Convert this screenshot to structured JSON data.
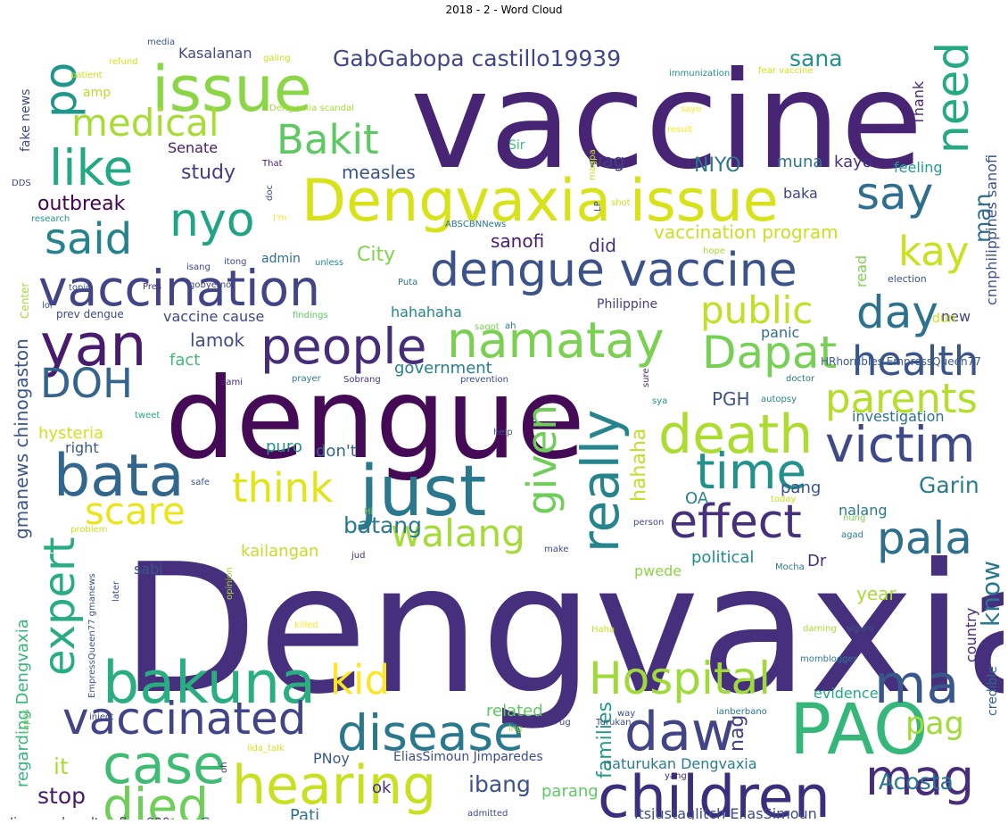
{
  "title": "2018 - 2 - Word Cloud",
  "words": [
    {
      "text": "Dengvaxia",
      "color": "#46307e"
    },
    {
      "text": "vaccine",
      "color": "#482475"
    },
    {
      "text": "dengue",
      "color": "#440a56"
    },
    {
      "text": "issue",
      "color": "#8bd646"
    },
    {
      "text": "Dengvaxia issue",
      "color": "#d8e219"
    },
    {
      "text": "dengue vaccine",
      "color": "#3b528b"
    },
    {
      "text": "just",
      "color": "#2a788e"
    },
    {
      "text": "PAO",
      "color": "#35b779"
    },
    {
      "text": "children",
      "color": "#3b2f7d"
    },
    {
      "text": "vaccination",
      "color": "#414487"
    },
    {
      "text": "bata",
      "color": "#31668e"
    },
    {
      "text": "yan",
      "color": "#481b6d"
    },
    {
      "text": "people",
      "color": "#472c7a"
    },
    {
      "text": "namatay",
      "color": "#7ad151"
    },
    {
      "text": "bakuna",
      "color": "#29af7f"
    },
    {
      "text": "vaccinated",
      "color": "#414487"
    },
    {
      "text": "disease",
      "color": "#2a788e"
    },
    {
      "text": "case",
      "color": "#3fbc73"
    },
    {
      "text": "hearing",
      "color": "#c8e020"
    },
    {
      "text": "died",
      "color": "#6ece58"
    },
    {
      "text": "daw",
      "color": "#414487"
    },
    {
      "text": "mag",
      "color": "#472d7b"
    },
    {
      "text": "ma",
      "color": "#38588c"
    },
    {
      "text": "death",
      "color": "#addc30"
    },
    {
      "text": "pala",
      "color": "#2d708e"
    },
    {
      "text": "victim",
      "color": "#3e4989"
    },
    {
      "text": "health",
      "color": "#3a548c"
    },
    {
      "text": "time",
      "color": "#21918c"
    },
    {
      "text": "effect",
      "color": "#46307e"
    },
    {
      "text": "walang",
      "color": "#a5db36"
    },
    {
      "text": "think",
      "color": "#e2e418"
    },
    {
      "text": "scare",
      "color": "#eae51a"
    },
    {
      "text": "expert",
      "color": "#27ad81"
    },
    {
      "text": "really",
      "color": "#25848e"
    },
    {
      "text": "given",
      "color": "#6ece58"
    },
    {
      "text": "Hospital",
      "color": "#a0da39"
    },
    {
      "text": "kid",
      "color": "#fde725"
    },
    {
      "text": "need",
      "color": "#23a983"
    },
    {
      "text": "say",
      "color": "#2e6e8e"
    },
    {
      "text": "day",
      "color": "#2c728e"
    },
    {
      "text": "kay",
      "color": "#cae11f"
    },
    {
      "text": "public",
      "color": "#c0df25"
    },
    {
      "text": "Dapat",
      "color": "#75d054"
    },
    {
      "text": "parents",
      "color": "#b5de2b"
    },
    {
      "text": "like",
      "color": "#22a884"
    },
    {
      "text": "medical",
      "color": "#a8db34"
    },
    {
      "text": "po",
      "color": "#1f978b"
    },
    {
      "text": "Bakit",
      "color": "#5ec962"
    },
    {
      "text": "said",
      "color": "#25838e"
    },
    {
      "text": "nyo",
      "color": "#20a486"
    },
    {
      "text": "DOH",
      "color": "#32648e"
    },
    {
      "text": "GabGabopa castillo19939",
      "color": "#3f4788"
    },
    {
      "text": "sana",
      "color": "#21918c"
    },
    {
      "text": "Acosta",
      "color": "#2a788e"
    },
    {
      "text": "pag",
      "color": "#a2da37"
    },
    {
      "text": "know",
      "color": "#2a788e"
    },
    {
      "text": "Garin",
      "color": "#287c8e"
    },
    {
      "text": "ibang",
      "color": "#3a538b"
    },
    {
      "text": "stop",
      "color": "#481a6c"
    },
    {
      "text": "it",
      "color": "#a8db34"
    },
    {
      "text": "regarding Dengvaxia",
      "color": "#35b779"
    },
    {
      "text": "gmanews chinogaston",
      "color": "#39558c"
    },
    {
      "text": "hysteria",
      "color": "#d2e21b"
    },
    {
      "text": "outbreak",
      "color": "#440154"
    },
    {
      "text": "study",
      "color": "#433d84"
    },
    {
      "text": "Senate",
      "color": "#481c6e"
    },
    {
      "text": "measles",
      "color": "#3a548c"
    },
    {
      "text": "wag",
      "color": "#433d84"
    },
    {
      "text": "NIYO",
      "color": "#2a768e"
    },
    {
      "text": "muna",
      "color": "#2c738e"
    },
    {
      "text": "kayo",
      "color": "#46307e"
    },
    {
      "text": "sanofi",
      "color": "#481b6d"
    },
    {
      "text": "did",
      "color": "#472f7d"
    },
    {
      "text": "vaccination program",
      "color": "#c8e020"
    },
    {
      "text": "City",
      "color": "#7fd34e"
    },
    {
      "text": "man",
      "color": "#2e6e8e"
    },
    {
      "text": "lamok",
      "color": "#3e4c8a"
    },
    {
      "text": "fact",
      "color": "#3bbb75"
    },
    {
      "text": "vaccine cause",
      "color": "#414487"
    },
    {
      "text": "hahahaha",
      "color": "#24868e"
    },
    {
      "text": "government",
      "color": "#287d8e"
    },
    {
      "text": "PGH",
      "color": "#3b528b"
    },
    {
      "text": "puro",
      "color": "#21918c"
    },
    {
      "text": "don't",
      "color": "#31668e"
    },
    {
      "text": "right",
      "color": "#38598c"
    },
    {
      "text": "batang",
      "color": "#2a788e"
    },
    {
      "text": "kailangan",
      "color": "#c2df23"
    },
    {
      "text": "sabi",
      "color": "#3a548c"
    },
    {
      "text": "hahaha",
      "color": "#c0df25"
    },
    {
      "text": "OA",
      "color": "#26828e"
    },
    {
      "text": "nag",
      "color": "#433e85"
    },
    {
      "text": "pang",
      "color": "#3b528b"
    },
    {
      "text": "nalang",
      "color": "#29798e"
    },
    {
      "text": "political",
      "color": "#228c8d"
    },
    {
      "text": "Dr",
      "color": "#46307e"
    },
    {
      "text": "pwede",
      "color": "#8bd646"
    },
    {
      "text": "year",
      "color": "#a8db34"
    },
    {
      "text": "evidence",
      "color": "#22a884"
    },
    {
      "text": "related",
      "color": "#5cc863"
    },
    {
      "text": "families",
      "color": "#1e9b8a"
    },
    {
      "text": "naturukan Dengvaxia",
      "color": "#287d8e"
    },
    {
      "text": "PNoy",
      "color": "#38588c"
    },
    {
      "text": "EliasSimoun Jimparedes",
      "color": "#3d4e8a"
    },
    {
      "text": "ok",
      "color": "#472f7d"
    },
    {
      "text": "Pati",
      "color": "#2c718e"
    },
    {
      "text": "parang",
      "color": "#5ec962"
    },
    {
      "text": "itsjustaglitch EliasSimoun",
      "color": "#3e4a89"
    },
    {
      "text": "Cause",
      "color": "#2e6e8e"
    },
    {
      "text": "Jimparedes altsurfboy000",
      "color": "#46337f"
    },
    {
      "text": "country",
      "color": "#482677"
    },
    {
      "text": "credible",
      "color": "#33638d"
    },
    {
      "text": "cnnphilippines sanofi",
      "color": "#3b528b"
    },
    {
      "text": "investigation",
      "color": "#2c728e"
    },
    {
      "text": "feeling",
      "color": "#1f9e89"
    },
    {
      "text": "baka",
      "color": "#404588"
    },
    {
      "text": "Thank",
      "color": "#482878"
    },
    {
      "text": "read",
      "color": "#7ad151"
    },
    {
      "text": "new",
      "color": "#3e4a89"
    },
    {
      "text": "dun",
      "color": "#d2e21b"
    },
    {
      "text": "panic",
      "color": "#2e6f8e"
    },
    {
      "text": "Philippine",
      "color": "#433e85"
    },
    {
      "text": "admin",
      "color": "#2e6e8e"
    },
    {
      "text": "Kasalanan",
      "color": "#3e4989"
    },
    {
      "text": "fake news",
      "color": "#3e4a89"
    },
    {
      "text": "amp",
      "color": "#b5de2b"
    },
    {
      "text": "Sir",
      "color": "#3dbc74"
    },
    {
      "text": "That",
      "color": "#482173"
    },
    {
      "text": "Center",
      "color": "#a8db34"
    },
    {
      "text": "prev dengue",
      "color": "#3e4989"
    },
    {
      "text": "HRhorribles EmpressQueen77",
      "color": "#39568c"
    },
    {
      "text": "election",
      "color": "#3b528b"
    },
    {
      "text": "EmpressQueen77 gmanews",
      "color": "#3b528b"
    },
    {
      "text": "Turukan",
      "color": "#3e4989"
    },
    {
      "text": "ianberbano",
      "color": "#2c738e"
    },
    {
      "text": "momblogger",
      "color": "#29798e"
    },
    {
      "text": "ilda_talk",
      "color": "#d8e219"
    },
    {
      "text": "autopsy",
      "color": "#26828e"
    },
    {
      "text": "investigating",
      "color": "#3b528b"
    },
    {
      "text": "admitted",
      "color": "#3e4989"
    },
    {
      "text": "media",
      "color": "#3a548c"
    },
    {
      "text": "refund",
      "color": "#d8e219"
    },
    {
      "text": "patient",
      "color": "#c8e020"
    },
    {
      "text": "galing",
      "color": "#c8e020"
    },
    {
      "text": "immunization",
      "color": "#21918c"
    },
    {
      "text": "fear vaccine",
      "color": "#d2e21b"
    },
    {
      "text": "Dengvaxia scandal",
      "color": "#a5db36"
    },
    {
      "text": "sayo",
      "color": "#fde725"
    },
    {
      "text": "result",
      "color": "#fde725"
    },
    {
      "text": "DDS",
      "color": "#3e4a89"
    },
    {
      "text": "research",
      "color": "#21918c"
    },
    {
      "text": "lol",
      "color": "#3b528b"
    },
    {
      "text": "topic",
      "color": "#39568c"
    },
    {
      "text": "Pres",
      "color": "#46337f"
    },
    {
      "text": "isang",
      "color": "#3e4989"
    },
    {
      "text": "gobyerno",
      "color": "#414487"
    },
    {
      "text": "itong",
      "color": "#3e4a89"
    },
    {
      "text": "unless",
      "color": "#228c8d"
    },
    {
      "text": "Puta",
      "color": "#2c718e"
    },
    {
      "text": "hope",
      "color": "#a8db34"
    },
    {
      "text": "ah",
      "color": "#2a788e"
    },
    {
      "text": "sagot",
      "color": "#7ad151"
    },
    {
      "text": "findings",
      "color": "#5ec962"
    },
    {
      "text": "dami",
      "color": "#482677"
    },
    {
      "text": "prayer",
      "color": "#2a788e"
    },
    {
      "text": "Sobrang",
      "color": "#46337f"
    },
    {
      "text": "prevention",
      "color": "#3e4989"
    },
    {
      "text": "doctor",
      "color": "#2a788e"
    },
    {
      "text": "sure",
      "color": "#482878"
    },
    {
      "text": "sya",
      "color": "#21918c"
    },
    {
      "text": "tweet",
      "color": "#22a884"
    },
    {
      "text": "help",
      "color": "#3b528b"
    },
    {
      "text": "safe",
      "color": "#3b528b"
    },
    {
      "text": "Hi",
      "color": "#7ad151"
    },
    {
      "text": "today",
      "color": "#c8e020"
    },
    {
      "text": "person",
      "color": "#3e4989"
    },
    {
      "text": "agad",
      "color": "#287d8e"
    },
    {
      "text": "nung",
      "color": "#7ad151"
    },
    {
      "text": "problem",
      "color": "#c8e020"
    },
    {
      "text": "make",
      "color": "#3e4989"
    },
    {
      "text": "later",
      "color": "#3b528b"
    },
    {
      "text": "opinion",
      "color": "#a8db34"
    },
    {
      "text": "jud",
      "color": "#482878"
    },
    {
      "text": "Mocha",
      "color": "#2c738e"
    },
    {
      "text": "killed",
      "color": "#fde725"
    },
    {
      "text": "Haha",
      "color": "#c8e020"
    },
    {
      "text": "daming",
      "color": "#a8db34"
    },
    {
      "text": "siguro",
      "color": "#3b528b"
    },
    {
      "text": "tapos",
      "color": "#5ec962"
    },
    {
      "text": "inject",
      "color": "#3e4989"
    },
    {
      "text": "lng",
      "color": "#a8db34"
    },
    {
      "text": "ug",
      "color": "#3e4989"
    },
    {
      "text": "way",
      "color": "#3e4989"
    },
    {
      "text": "oh",
      "color": "#482878"
    },
    {
      "text": "yang",
      "color": "#482878"
    },
    {
      "text": "ABSCBNNews",
      "color": "#2c738e"
    },
    {
      "text": "LP",
      "color": "#3e4989"
    },
    {
      "text": "doc",
      "color": "#3e4989"
    },
    {
      "text": "I'm",
      "color": "#fde725"
    },
    {
      "text": "magpa",
      "color": "#c8e020"
    },
    {
      "text": "shot",
      "color": "#c8e020"
    }
  ]
}
